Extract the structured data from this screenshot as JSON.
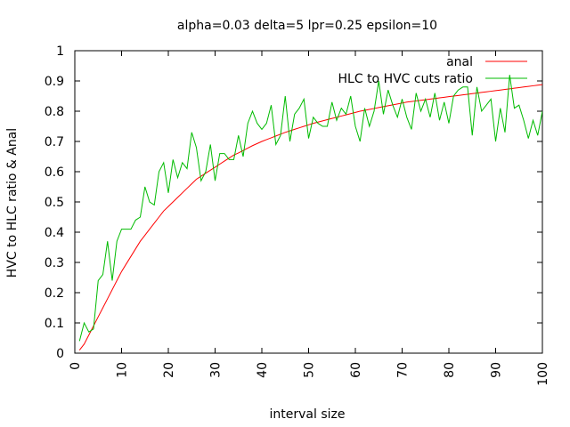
{
  "chart_data": {
    "type": "line",
    "title": "alpha=0.03 delta=5 lpr=0.25 epsilon=10",
    "xlabel": "interval size",
    "ylabel": "HVC to HLC ratio & Anal",
    "xlim": [
      0,
      100
    ],
    "ylim": [
      0,
      1
    ],
    "xticks": [
      "0",
      "10",
      "20",
      "30",
      "40",
      "50",
      "60",
      "70",
      "80",
      "90",
      "100"
    ],
    "yticks": [
      "0",
      "0.1",
      "0.2",
      "0.3",
      "0.4",
      "0.5",
      "0.6",
      "0.7",
      "0.8",
      "0.9",
      "1"
    ],
    "legend_position": "top-right",
    "grid": false,
    "series": [
      {
        "name": "anal",
        "color": "#ff0000",
        "x": [
          1,
          2,
          3,
          4,
          5,
          6,
          7,
          8,
          9,
          10,
          11,
          12,
          13,
          14,
          15,
          16,
          17,
          18,
          19,
          20,
          21,
          22,
          23,
          24,
          25,
          26,
          27,
          28,
          29,
          30,
          31,
          32,
          33,
          34,
          35,
          36,
          37,
          38,
          39,
          40,
          41,
          42,
          43,
          44,
          45,
          46,
          47,
          48,
          49,
          50,
          51,
          52,
          53,
          54,
          55,
          56,
          57,
          58,
          59,
          60,
          61,
          62,
          63,
          64,
          65,
          66,
          67,
          68,
          69,
          70,
          71,
          72,
          73,
          74,
          75,
          76,
          77,
          78,
          79,
          80,
          81,
          82,
          83,
          84,
          85,
          86,
          87,
          88,
          89,
          90,
          91,
          92,
          93,
          94,
          95,
          96,
          97,
          98,
          99,
          100
        ],
        "values": [
          0.01,
          0.03,
          0.06,
          0.09,
          0.12,
          0.15,
          0.18,
          0.21,
          0.24,
          0.27,
          0.295,
          0.32,
          0.345,
          0.37,
          0.39,
          0.41,
          0.43,
          0.45,
          0.47,
          0.485,
          0.5,
          0.515,
          0.53,
          0.545,
          0.56,
          0.575,
          0.585,
          0.595,
          0.605,
          0.615,
          0.625,
          0.635,
          0.645,
          0.655,
          0.662,
          0.67,
          0.678,
          0.686,
          0.693,
          0.7,
          0.706,
          0.712,
          0.718,
          0.724,
          0.73,
          0.735,
          0.74,
          0.745,
          0.75,
          0.755,
          0.76,
          0.764,
          0.768,
          0.772,
          0.776,
          0.78,
          0.784,
          0.788,
          0.792,
          0.796,
          0.8,
          0.803,
          0.806,
          0.809,
          0.812,
          0.815,
          0.818,
          0.821,
          0.824,
          0.827,
          0.83,
          0.832,
          0.834,
          0.836,
          0.838,
          0.84,
          0.842,
          0.844,
          0.846,
          0.848,
          0.85,
          0.852,
          0.854,
          0.856,
          0.858,
          0.86,
          0.862,
          0.864,
          0.866,
          0.868,
          0.87,
          0.872,
          0.874,
          0.876,
          0.878,
          0.88,
          0.882,
          0.884,
          0.886,
          0.888
        ]
      },
      {
        "name": "HLC to HVC cuts ratio",
        "color": "#00bb00",
        "x": [
          1,
          2,
          3,
          4,
          5,
          6,
          7,
          8,
          9,
          10,
          11,
          12,
          13,
          14,
          15,
          16,
          17,
          18,
          19,
          20,
          21,
          22,
          23,
          24,
          25,
          26,
          27,
          28,
          29,
          30,
          31,
          32,
          33,
          34,
          35,
          36,
          37,
          38,
          39,
          40,
          41,
          42,
          43,
          44,
          45,
          46,
          47,
          48,
          49,
          50,
          51,
          52,
          53,
          54,
          55,
          56,
          57,
          58,
          59,
          60,
          61,
          62,
          63,
          64,
          65,
          66,
          67,
          68,
          69,
          70,
          71,
          72,
          73,
          74,
          75,
          76,
          77,
          78,
          79,
          80,
          81,
          82,
          83,
          84,
          85,
          86,
          87,
          88,
          89,
          90,
          91,
          92,
          93,
          94,
          95,
          96,
          97,
          98,
          99,
          100
        ],
        "values": [
          0.04,
          0.1,
          0.07,
          0.08,
          0.24,
          0.26,
          0.37,
          0.24,
          0.37,
          0.41,
          0.41,
          0.41,
          0.44,
          0.45,
          0.55,
          0.5,
          0.49,
          0.6,
          0.63,
          0.53,
          0.64,
          0.58,
          0.63,
          0.61,
          0.73,
          0.68,
          0.57,
          0.6,
          0.69,
          0.57,
          0.66,
          0.66,
          0.64,
          0.64,
          0.72,
          0.65,
          0.76,
          0.8,
          0.76,
          0.74,
          0.76,
          0.82,
          0.69,
          0.72,
          0.85,
          0.7,
          0.79,
          0.81,
          0.84,
          0.71,
          0.78,
          0.76,
          0.75,
          0.75,
          0.83,
          0.77,
          0.81,
          0.79,
          0.85,
          0.75,
          0.7,
          0.81,
          0.75,
          0.8,
          0.9,
          0.79,
          0.87,
          0.82,
          0.78,
          0.84,
          0.78,
          0.74,
          0.86,
          0.8,
          0.84,
          0.78,
          0.86,
          0.77,
          0.83,
          0.76,
          0.85,
          0.87,
          0.88,
          0.88,
          0.72,
          0.88,
          0.8,
          0.82,
          0.84,
          0.7,
          0.81,
          0.73,
          0.92,
          0.81,
          0.82,
          0.77,
          0.71,
          0.77,
          0.72,
          0.8
        ]
      }
    ]
  }
}
